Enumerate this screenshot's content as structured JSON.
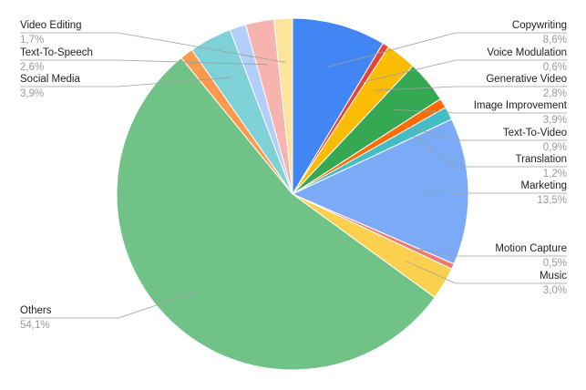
{
  "chart_data": {
    "type": "pie",
    "categories": [
      "Copywriting",
      "Voice Modulation",
      "Generative Video",
      "Image Improvement",
      "Text-To-Video",
      "Translation",
      "Marketing",
      "Motion Capture",
      "Music",
      "Others",
      null,
      "Social Media",
      null,
      "Text-To-Speech",
      "Video Editing"
    ],
    "values": [
      8.6,
      0.6,
      2.8,
      3.9,
      0.9,
      1.2,
      13.5,
      0.5,
      3.0,
      54.1,
      1.2,
      3.9,
      1.5,
      2.6,
      1.7
    ],
    "value_labels": [
      "8,6%",
      "0,6%",
      "2,8%",
      "3,9%",
      "0,9%",
      "1,2%",
      "13,5%",
      "0,5%",
      "3,0%",
      "54,1%",
      null,
      "3,9%",
      null,
      "2,6%",
      "1,7%"
    ],
    "colors": [
      "#4285f4",
      "#ea4335",
      "#fbbc04",
      "#34a853",
      "#ff6d01",
      "#46bdc6",
      "#7baaf7",
      "#f07b72",
      "#fcd04f",
      "#71c287",
      "#ff994d",
      "#7ed1d7",
      "#b3cefb",
      "#f7b4ae",
      "#fde49b"
    ]
  }
}
